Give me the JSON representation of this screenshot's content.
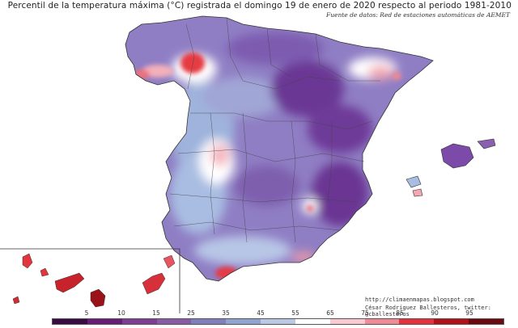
{
  "header": {
    "title": "Percentil de la temperatura máxima (°C) registrada el domingo 19 de enero de 2020 respecto al periodo 1981-2010",
    "source": "Fuente de datos: Red de estaciones automáticas de AEMET"
  },
  "credits": {
    "url": "http://climaenmapas.blogspot.com",
    "author": "César Rodríguez Ballesteros, twitter: @cballesteros"
  },
  "legend": {
    "ticks": [
      "5",
      "10",
      "15",
      "25",
      "35",
      "45",
      "55",
      "65",
      "75",
      "85",
      "90",
      "95"
    ],
    "colors": [
      "#3b0a45",
      "#6a1b7a",
      "#7e3c97",
      "#8a5aa8",
      "#7f7fbf",
      "#8fa3d0",
      "#b9c8e4",
      "#ffffff",
      "#f9c9cf",
      "#f08a95",
      "#e8303a",
      "#b50f18",
      "#6b0a0e"
    ]
  },
  "colors": {
    "purple_dark": "#6a2c8a",
    "purple": "#8a62b4",
    "lavender": "#9e8fcc",
    "blue": "#8fa8d6",
    "white": "#ffffff",
    "pink": "#f5b5bf",
    "red": "#e8303a"
  }
}
